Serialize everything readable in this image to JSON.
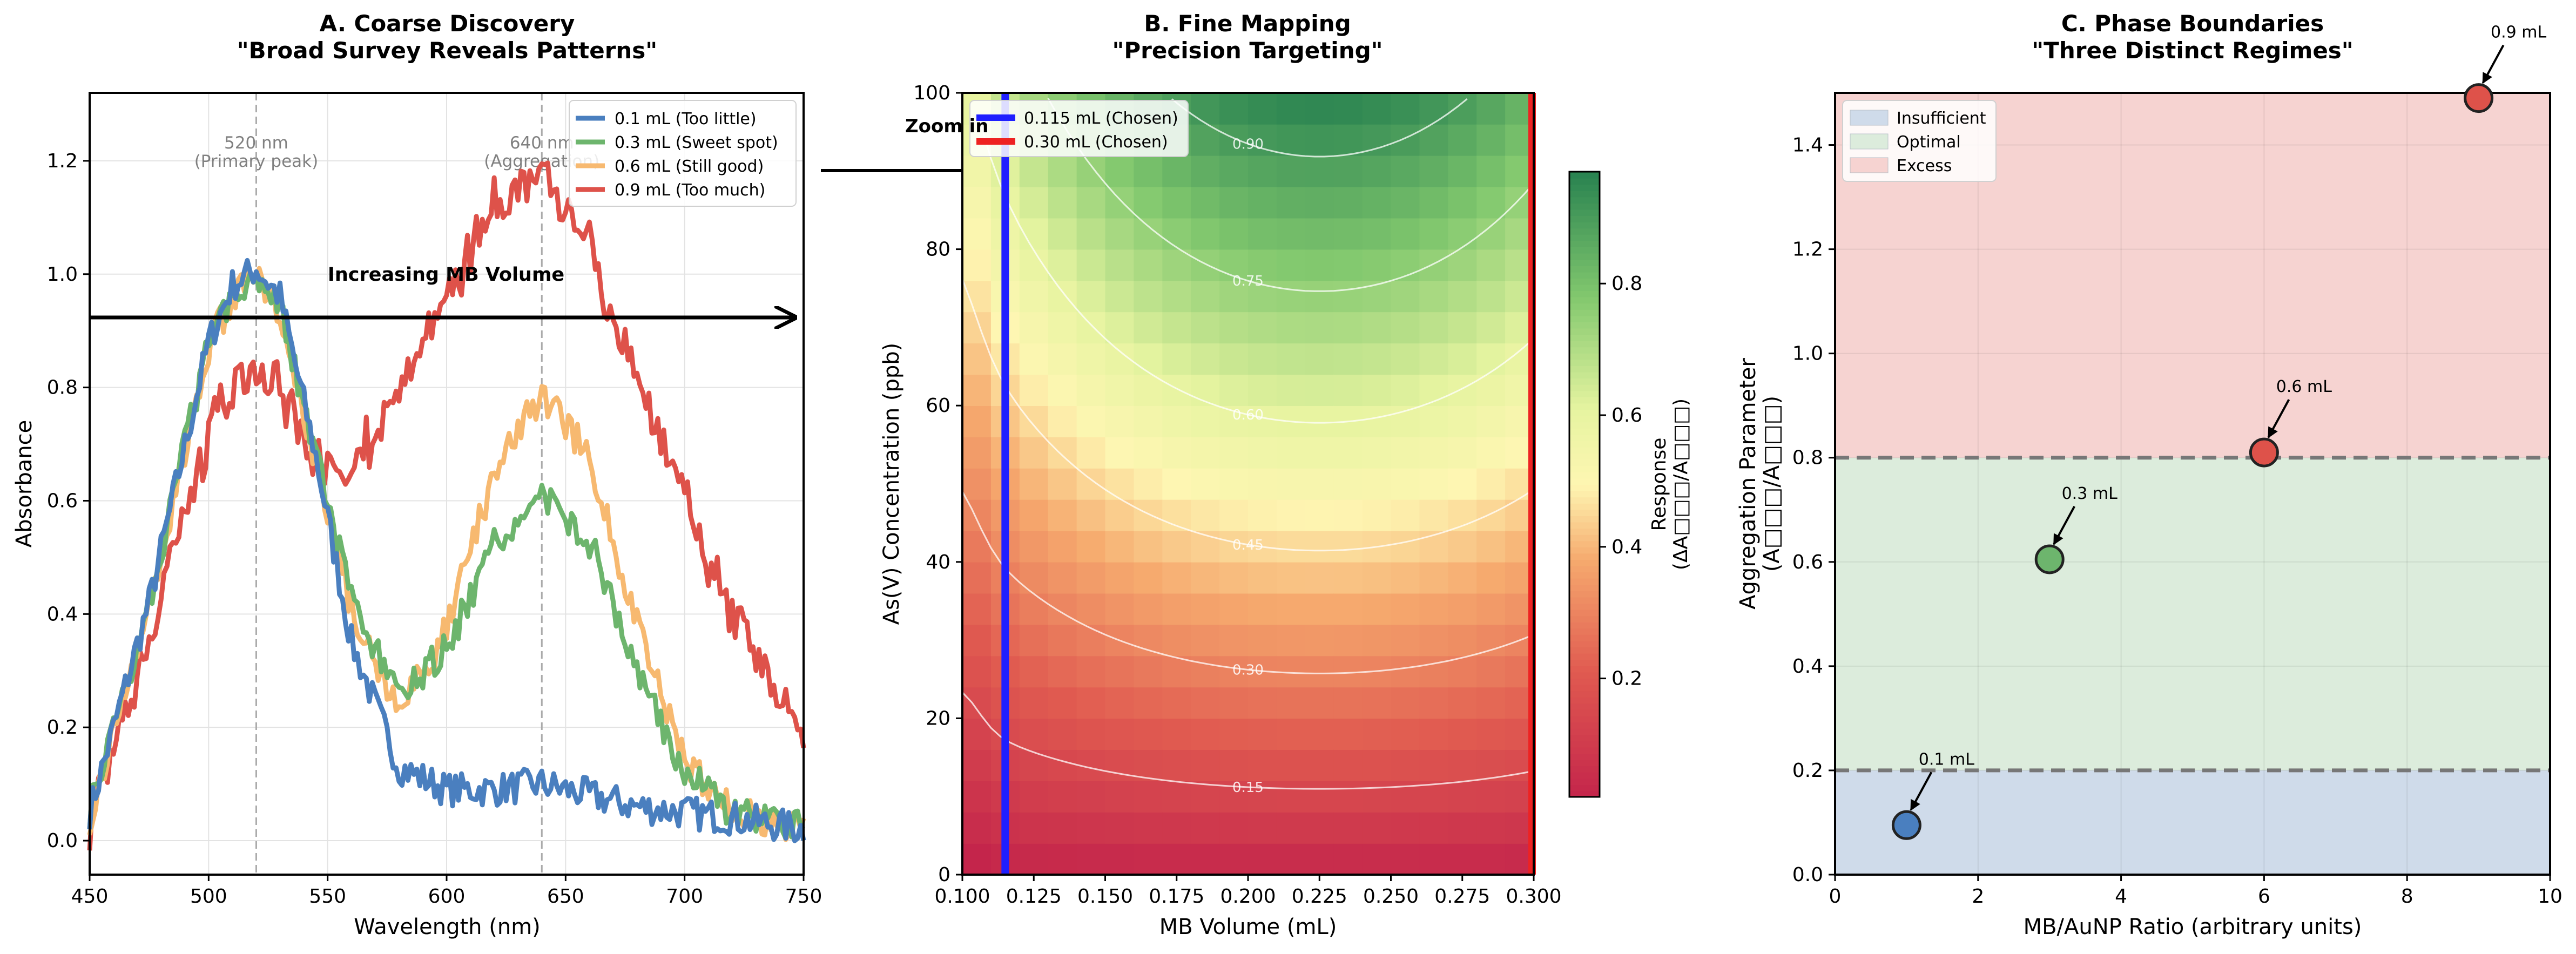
{
  "colors": {
    "blue": "#4A7FBF",
    "green": "#6DB56D",
    "orange": "#F7B970",
    "red": "#DE524A",
    "chosen_blue": "#1f1fff",
    "chosen_red": "#ee2222",
    "insufficient": "#cfdbea",
    "optimal": "#dcecdc",
    "excess": "#f6d3d1"
  },
  "chart_data": [
    {
      "type": "line",
      "title": "A. Coarse Discovery",
      "subtitle": "\"Broad Survey Reveals Patterns\"",
      "xlabel": "Wavelength (nm)",
      "ylabel": "Absorbance",
      "xlim": [
        450,
        750
      ],
      "ylim": [
        -0.06,
        1.32
      ],
      "xticks": [
        "450",
        "500",
        "550",
        "600",
        "650",
        "700",
        "750"
      ],
      "yticks": [
        "0.0",
        "0.2",
        "0.4",
        "0.6",
        "0.8",
        "1.0",
        "1.2"
      ],
      "grid": true,
      "legend": "top-right",
      "x": [
        450,
        475,
        500,
        510,
        520,
        530,
        545,
        560,
        580,
        600,
        620,
        640,
        660,
        680,
        700,
        720,
        750
      ],
      "series": [
        {
          "name": "0.1 mL (Too little)",
          "color": "blue",
          "values": [
            0.05,
            0.42,
            0.88,
            0.98,
            1.01,
            0.96,
            0.68,
            0.35,
            0.13,
            0.09,
            0.09,
            0.1,
            0.08,
            0.06,
            0.05,
            0.04,
            0.02
          ]
        },
        {
          "name": "0.3 mL (Sweet spot)",
          "color": "green",
          "values": [
            0.05,
            0.42,
            0.88,
            0.97,
            1.0,
            0.95,
            0.68,
            0.42,
            0.25,
            0.34,
            0.52,
            0.61,
            0.53,
            0.3,
            0.12,
            0.05,
            0.02
          ]
        },
        {
          "name": "0.6 mL (Still good)",
          "color": "orange",
          "values": [
            0.04,
            0.41,
            0.87,
            0.96,
            0.99,
            0.94,
            0.67,
            0.41,
            0.23,
            0.37,
            0.65,
            0.79,
            0.68,
            0.38,
            0.14,
            0.05,
            0.02
          ]
        },
        {
          "name": "0.9 mL (Too much)",
          "color": "red",
          "values": [
            0.03,
            0.36,
            0.72,
            0.8,
            0.83,
            0.8,
            0.66,
            0.66,
            0.79,
            0.96,
            1.12,
            1.17,
            1.05,
            0.82,
            0.6,
            0.4,
            0.18
          ]
        }
      ],
      "vlines": [
        {
          "x": 520,
          "label": "520 nm\n(Primary peak)"
        },
        {
          "x": 640,
          "label": "640 nm\n(Aggregation)"
        }
      ],
      "annotation": {
        "text": "Increasing MB Volume",
        "y": 0.93
      }
    },
    {
      "type": "heatmap",
      "title": "B. Fine Mapping",
      "subtitle": "\"Precision Targeting\"",
      "xlabel": "MB Volume (mL)",
      "ylabel": "As(V) Concentration (ppb)",
      "xlim": [
        0.1,
        0.3
      ],
      "ylim": [
        0,
        100
      ],
      "xticks": [
        "0.100",
        "0.125",
        "0.150",
        "0.175",
        "0.200",
        "0.225",
        "0.250",
        "0.275",
        "0.300"
      ],
      "yticks": [
        "0",
        "20",
        "40",
        "60",
        "80",
        "100"
      ],
      "colorbar_label": "Response\n(ΔA□□□/A□□□)",
      "colorbar_ticks": [
        "0.2",
        "0.4",
        "0.6",
        "0.8"
      ],
      "colorbar_range": [
        0.02,
        0.97
      ],
      "contour_levels": [
        "0.15",
        "0.30",
        "0.45",
        "0.60",
        "0.75",
        "0.90"
      ],
      "optimum_volume": 0.225,
      "legend": "top-left",
      "chosen_lines": [
        {
          "name": "0.115 mL (Chosen)",
          "x": 0.115,
          "color": "chosen_blue",
          "visible_in_plot": true
        },
        {
          "name": "0.30 mL (Chosen)",
          "x": 0.3,
          "color": "chosen_red",
          "visible_in_plot": true
        }
      ],
      "zoom_label": "Zoom in"
    },
    {
      "type": "scatter",
      "title": "C. Phase Boundaries",
      "subtitle": "\"Three Distinct Regimes\"",
      "xlabel": "MB/AuNP Ratio (arbitrary units)",
      "ylabel": "Aggregation Parameter\n(A□□□/A□□□)",
      "xlim": [
        0,
        10
      ],
      "ylim": [
        0,
        1.5
      ],
      "xticks": [
        "0",
        "2",
        "4",
        "6",
        "8",
        "10"
      ],
      "yticks": [
        "0.0",
        "0.2",
        "0.4",
        "0.6",
        "0.8",
        "1.0",
        "1.2",
        "1.4"
      ],
      "legend": "top-left",
      "regions": [
        {
          "name": "Insufficient",
          "y0": 0,
          "y1": 0.2,
          "color": "insufficient"
        },
        {
          "name": "Optimal",
          "y0": 0.2,
          "y1": 0.8,
          "color": "optimal"
        },
        {
          "name": "Excess",
          "y0": 0.8,
          "y1": 1.5,
          "color": "excess"
        }
      ],
      "boundaries": [
        0.2,
        0.8
      ],
      "points": [
        {
          "label": "0.1 mL",
          "x": 1,
          "y": 0.095,
          "color": "blue"
        },
        {
          "label": "0.3 mL",
          "x": 3,
          "y": 0.605,
          "color": "green"
        },
        {
          "label": "0.6 mL",
          "x": 6,
          "y": 0.81,
          "color": "red"
        },
        {
          "label": "0.9 mL",
          "x": 9,
          "y": 1.49,
          "color": "red"
        }
      ]
    }
  ]
}
